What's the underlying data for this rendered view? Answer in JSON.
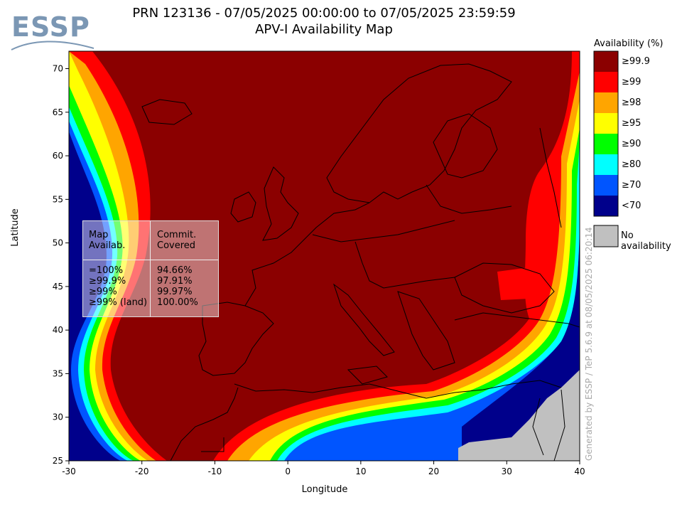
{
  "title_line1": "PRN 123136 - 07/05/2025 00:00:00 to 07/05/2025 23:59:59",
  "title_line2": "APV-I Availability Map",
  "logo_text": "ESSP",
  "axes": {
    "xlabel": "Longitude",
    "ylabel": "Latitude",
    "x_ticks": [
      "-30",
      "-20",
      "-10",
      "0",
      "10",
      "20",
      "30",
      "40"
    ],
    "y_ticks": [
      "70",
      "65",
      "60",
      "55",
      "50",
      "45",
      "40",
      "35",
      "30",
      "25"
    ],
    "x_range": [
      -30,
      40
    ],
    "y_range": [
      25,
      72
    ]
  },
  "legend": {
    "title": "Availability (%)",
    "entries": [
      {
        "label": "≥99.9",
        "color": "#8b0000"
      },
      {
        "label": "≥99",
        "color": "#ff0000"
      },
      {
        "label": "≥98",
        "color": "#ffa500"
      },
      {
        "label": "≥95",
        "color": "#ffff00"
      },
      {
        "label": "≥90",
        "color": "#00ff00"
      },
      {
        "label": "≥80",
        "color": "#00ffff"
      },
      {
        "label": "≥70",
        "color": "#0055ff"
      },
      {
        "label": "<70",
        "color": "#00008b"
      }
    ],
    "no_availability": {
      "label": "No availability",
      "color": "#c0c0c0"
    }
  },
  "stats_table": {
    "header_left": [
      "Map",
      "Availab."
    ],
    "header_right": [
      "Commit.",
      "Covered"
    ],
    "rows": [
      {
        "level": "=100%",
        "covered": "94.66%"
      },
      {
        "level": "≥99.9%",
        "covered": "97.91%"
      },
      {
        "level": "≥99%",
        "covered": "99.97%"
      },
      {
        "level": "≥99% (land)",
        "covered": "100.00%"
      }
    ]
  },
  "watermark": "Generated by ESSP / TeP 5.6.9 at 08/05/2025 06:20:14"
}
